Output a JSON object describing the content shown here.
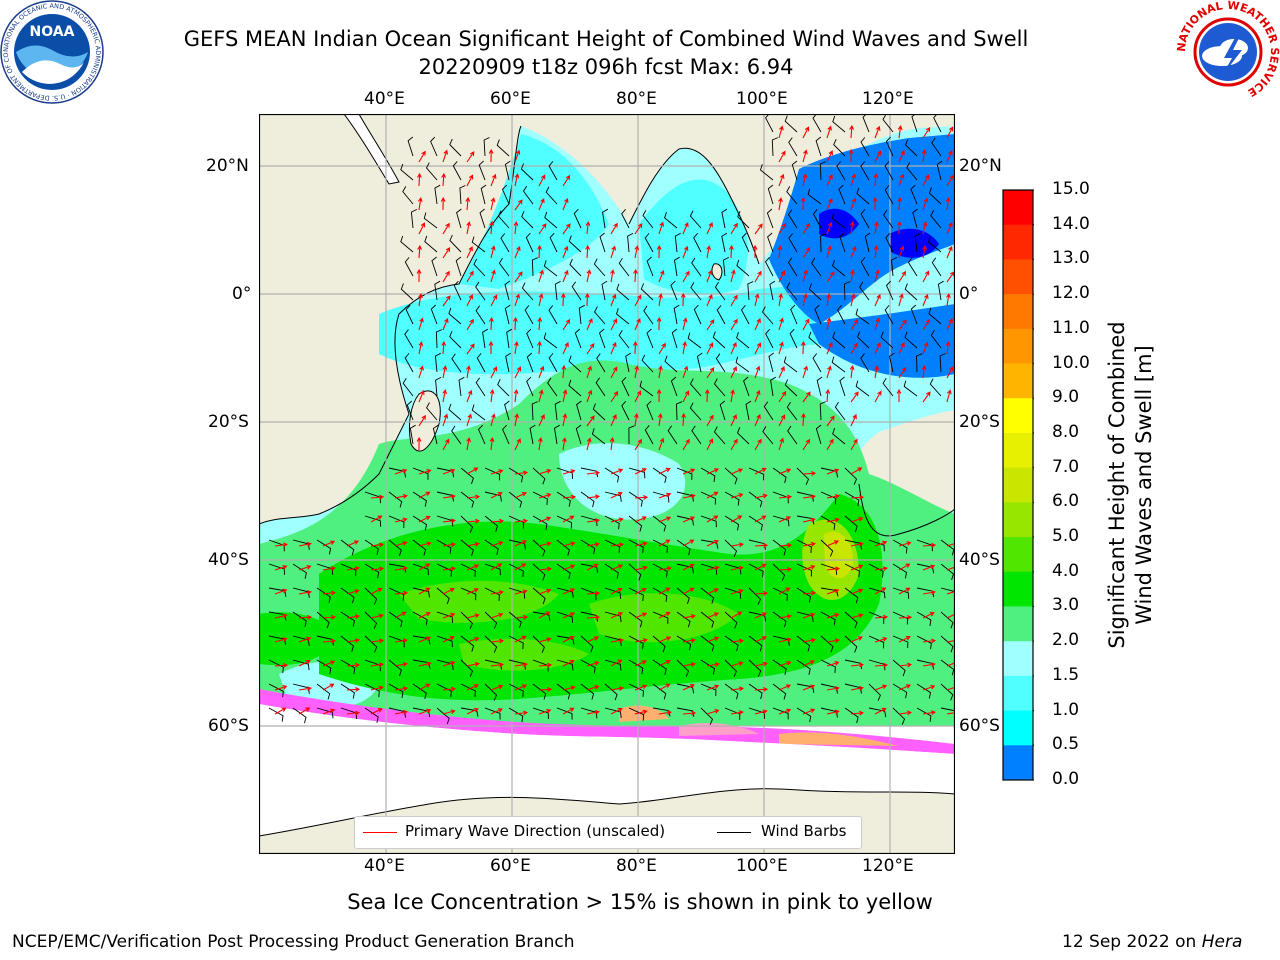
{
  "title": {
    "line1": "GEFS MEAN Indian Ocean Significant Height of Combined Wind Waves and Swell",
    "line2": "20220909 t18z 096h fcst   Max: 6.94"
  },
  "logos": {
    "noaa": "NOAA",
    "nws_ring": "NATIONAL WEATHER SERVICE",
    "noaa_ring": "NATIONAL OCEANIC AND ATMOSPHERIC ADMINISTRATION · U.S. DEPARTMENT OF COMMERCE"
  },
  "map": {
    "lon_ticks": [
      "40°E",
      "60°E",
      "80°E",
      "100°E",
      "120°E"
    ],
    "lat_ticks": [
      "20°N",
      "0°",
      "20°S",
      "40°S",
      "60°S"
    ],
    "land_color": "#efeddc",
    "grid": true
  },
  "legend": {
    "wave_direction": "Primary Wave Direction (unscaled)",
    "wind_barbs": "Wind Barbs",
    "wave_color": "#ff0000",
    "barb_color": "#000000"
  },
  "colorbar": {
    "label_line1": "Significant Height of Combined",
    "label_line2": "Wind Waves and Swell [m]",
    "levels": [
      "15.0",
      "14.0",
      "13.0",
      "12.0",
      "11.0",
      "10.0",
      "9.0",
      "8.0",
      "7.0",
      "6.0",
      "5.0",
      "4.0",
      "3.0",
      "2.0",
      "1.5",
      "1.0",
      "0.5",
      "0.0"
    ],
    "colors": [
      "#ff0000",
      "#ff2800",
      "#ff5000",
      "#ff7800",
      "#ff9600",
      "#ffb400",
      "#ffff00",
      "#e6f000",
      "#c8e600",
      "#96e600",
      "#50e600",
      "#00e600",
      "#50f080",
      "#a0ffff",
      "#50ffff",
      "#00ffff",
      "#0080ff",
      "#0000ff"
    ]
  },
  "notes": {
    "sea_ice": "Sea Ice Concentration > 15% is shown in pink to yellow"
  },
  "footer": {
    "left": "NCEP/EMC/Verification Post Processing Product Generation Branch",
    "date": "12 Sep 2022 on",
    "host": "Hera"
  }
}
